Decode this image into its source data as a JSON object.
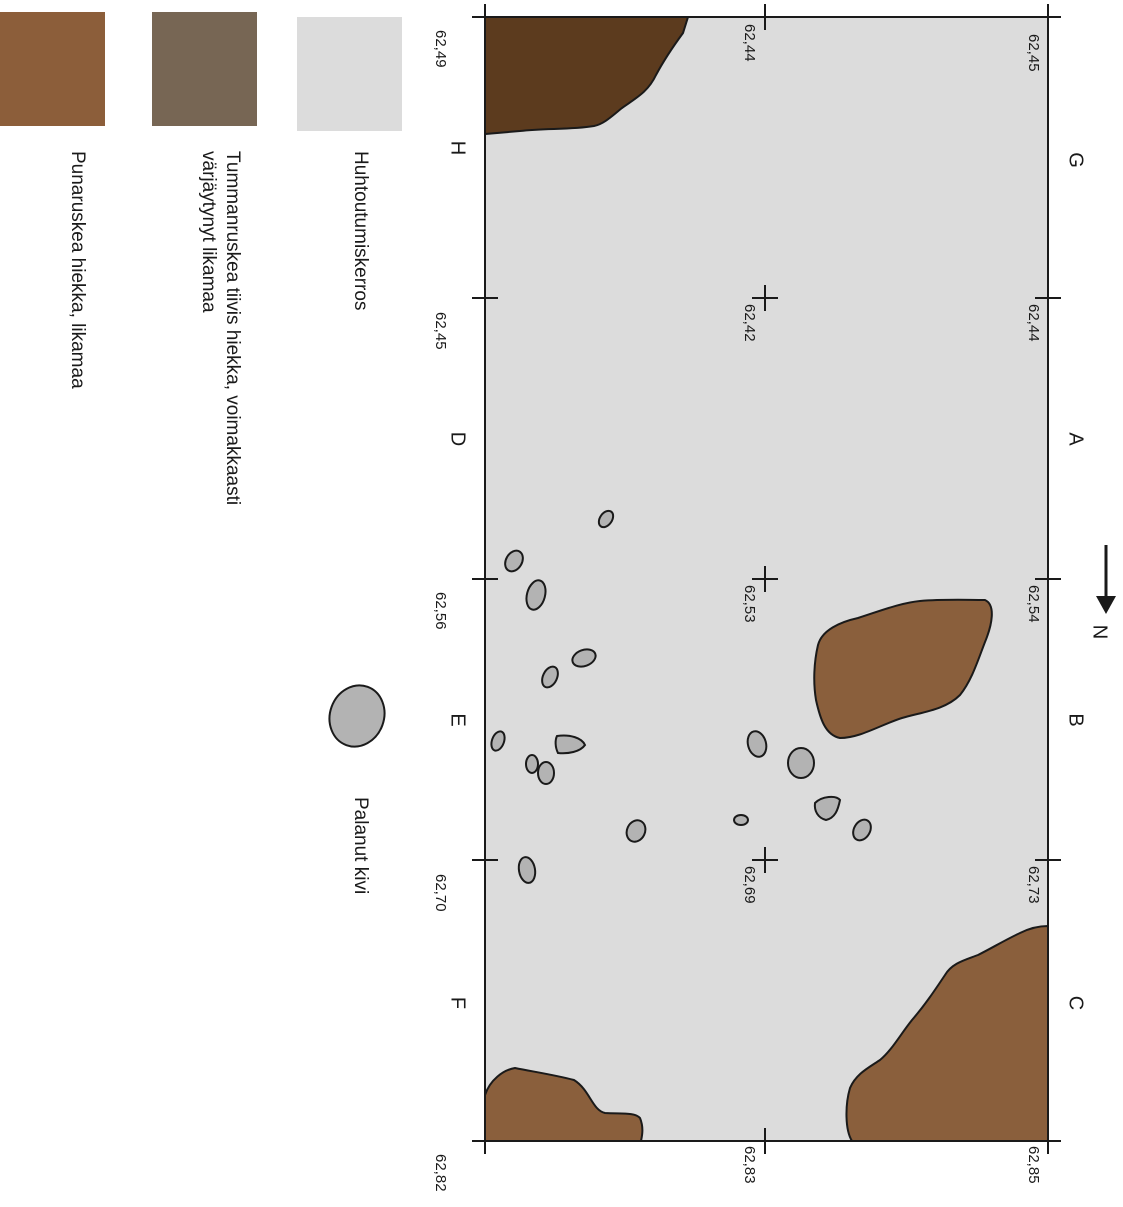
{
  "colors": {
    "background_layer": "#dcdcdc",
    "dark_brown": "#5c3b1e",
    "red_brown": "#8a5f3c",
    "legend_dark_grey_brown": "#776654",
    "legend_red_brown": "#8c5e3a",
    "legend_light": "#dcdcdc",
    "stone": "#b3b3b3",
    "outline": "#1a1a1a"
  },
  "north_label": "N",
  "grid_letters": [
    "G",
    "A",
    "B",
    "C",
    "H",
    "D",
    "E",
    "F"
  ],
  "elevations": {
    "outer_right": [
      "62,45",
      "62,44",
      "62,54",
      "62,73",
      "62,85"
    ],
    "middle": [
      "62,44",
      "62,42",
      "62,53",
      "62,69",
      "62,83"
    ],
    "outer_left": [
      "62,49",
      "62,45",
      "62,56",
      "62,70",
      "62,82"
    ]
  },
  "legend": {
    "layer_light": "Huhtoutumiskerros",
    "stone": "Palanut kivi",
    "dark_line1": "Tummanruskea tiivis hiekka, voimakkaasti",
    "dark_line2": "värjäytynyt likamaa",
    "red_brown": "Punaruskea hiekka, likamaa"
  },
  "icons": [
    "north-arrow-icon",
    "stone-symbol-icon"
  ]
}
